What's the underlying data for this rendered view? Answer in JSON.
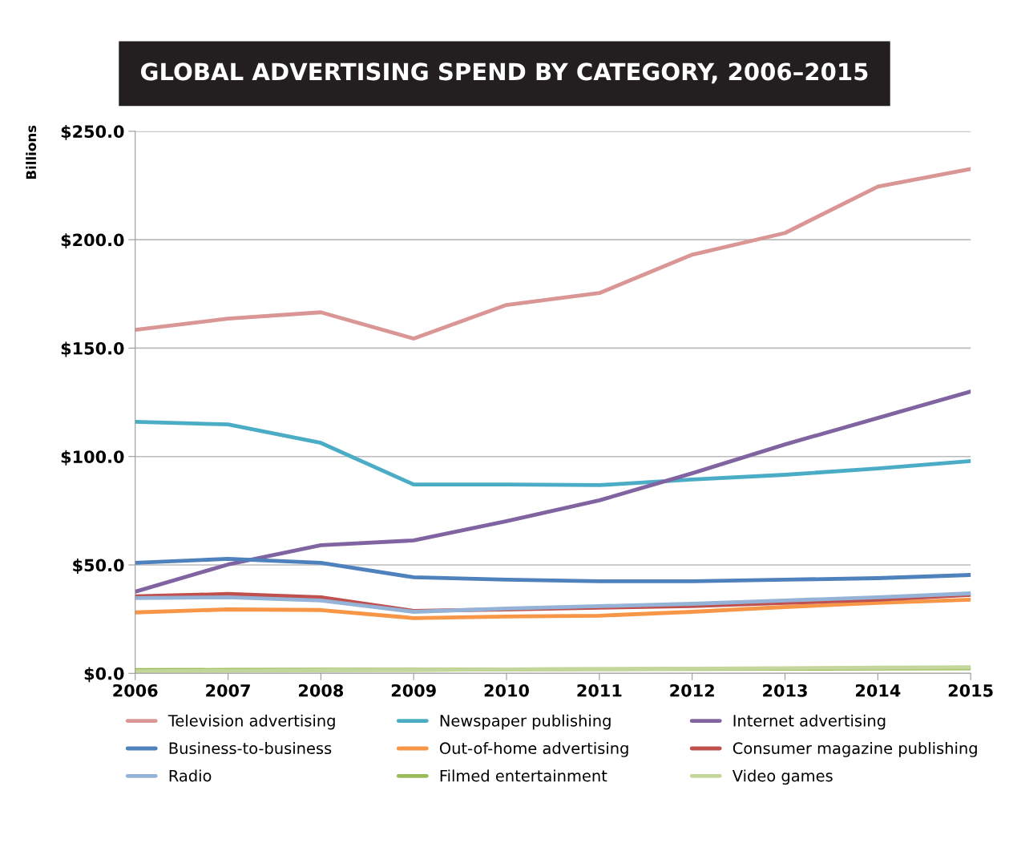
{
  "chart_data": {
    "type": "line",
    "title": "GLOBAL ADVERTISING SPEND BY CATEGORY, 2006–2015",
    "ylabel": "Billions",
    "x": [
      2006,
      2007,
      2008,
      2009,
      2010,
      2011,
      2012,
      2013,
      2014,
      2015
    ],
    "xlim": [
      2006,
      2015
    ],
    "xticks": [
      2006,
      2007,
      2008,
      2009,
      2010,
      2011,
      2012,
      2013,
      2014,
      2015
    ],
    "ylim": [
      0,
      250
    ],
    "yticks": [
      {
        "value": 0,
        "label": "$0.0"
      },
      {
        "value": 50,
        "label": "$50.0"
      },
      {
        "value": 100,
        "label": "$100.0"
      },
      {
        "value": 150,
        "label": "$150.0"
      },
      {
        "value": 200,
        "label": "$200.0"
      },
      {
        "value": 250,
        "label": "$250.0"
      }
    ],
    "grid": "y",
    "legend": "bottom",
    "marker": "none",
    "line_style": "solid",
    "series": [
      {
        "name": "Television advertising",
        "color": "#d99694",
        "values": [
          158.4,
          163.6,
          166.5,
          154.4,
          169.9,
          175.4,
          193.1,
          203.1,
          224.5,
          232.6
        ]
      },
      {
        "name": "Newspaper publishing",
        "color": "#4bacc6",
        "values": [
          116.0,
          114.8,
          106.3,
          87.1,
          87.1,
          86.8,
          89.4,
          91.6,
          94.5,
          97.9
        ]
      },
      {
        "name": "Internet advertising",
        "color": "#8064a2",
        "values": [
          37.7,
          50.2,
          59.1,
          61.3,
          70.2,
          79.8,
          92.3,
          105.6,
          117.8,
          130.0
        ]
      },
      {
        "name": "Business-to-business",
        "color": "#4f81bd",
        "values": [
          51.0,
          52.8,
          51.0,
          44.3,
          43.2,
          42.5,
          42.5,
          43.2,
          43.9,
          45.4
        ]
      },
      {
        "name": "Out-of-home advertising",
        "color": "#f79646",
        "values": [
          28.1,
          29.5,
          29.2,
          25.5,
          26.2,
          26.6,
          28.4,
          30.6,
          32.5,
          34.0
        ]
      },
      {
        "name": "Consumer magazine publishing",
        "color": "#c0504d",
        "values": [
          35.5,
          36.6,
          35.1,
          28.8,
          29.5,
          30.3,
          31.0,
          32.5,
          34.0,
          36.2
        ]
      },
      {
        "name": "Radio",
        "color": "#95b3d7",
        "values": [
          34.7,
          35.1,
          33.6,
          28.4,
          29.9,
          31.0,
          32.1,
          33.6,
          35.1,
          36.9
        ]
      },
      {
        "name": "Filmed entertainment",
        "color": "#9bbb59",
        "values": [
          1.5,
          1.6,
          1.7,
          1.7,
          1.8,
          1.9,
          2.0,
          2.1,
          2.2,
          2.3
        ]
      },
      {
        "name": "Video games",
        "color": "#c3d69b",
        "values": [
          1.0,
          1.2,
          1.4,
          1.6,
          1.8,
          2.0,
          2.2,
          2.4,
          2.6,
          2.8
        ]
      }
    ]
  }
}
